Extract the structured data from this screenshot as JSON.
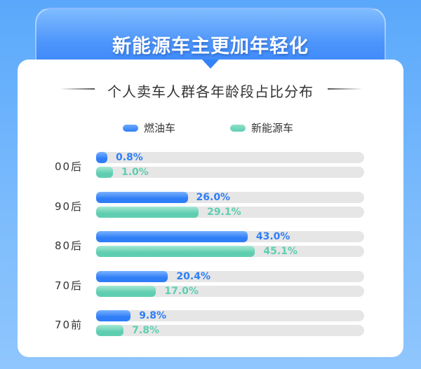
{
  "header": {
    "title": "新能源车主更加年轻化"
  },
  "chart_data": {
    "type": "bar",
    "orientation": "horizontal",
    "title": "个人卖车人群各年龄段占比分布",
    "categories": [
      "00后",
      "90后",
      "80后",
      "70后",
      "70前"
    ],
    "series": [
      {
        "name": "燃油车",
        "values": [
          0.8,
          26.0,
          43.0,
          20.4,
          9.8
        ],
        "labels": [
          "0.8%",
          "26.0%",
          "43.0%",
          "20.4%",
          "9.8%"
        ],
        "color": "#2f7ef7"
      },
      {
        "name": "新能源车",
        "values": [
          1.0,
          29.1,
          45.1,
          17.0,
          7.8
        ],
        "labels": [
          "1.0%",
          "29.1%",
          "45.1%",
          "17.0%",
          "7.8%"
        ],
        "color": "#5fceb0"
      }
    ],
    "legend": "top",
    "unit": "%"
  }
}
